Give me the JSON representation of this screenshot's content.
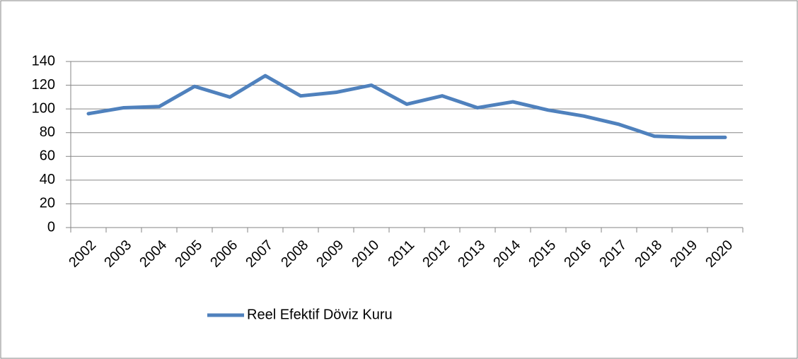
{
  "chart_data": {
    "type": "line",
    "categories": [
      "2002",
      "2003",
      "2004",
      "2005",
      "2006",
      "2007",
      "2008",
      "2009",
      "2010",
      "2011",
      "2012",
      "2013",
      "2014",
      "2015",
      "2016",
      "2017",
      "2018",
      "2019",
      "2020"
    ],
    "series": [
      {
        "name": "Reel Efektif Döviz Kuru",
        "color": "#4f81bd",
        "values": [
          96,
          101,
          102,
          119,
          110,
          128,
          111,
          114,
          120,
          104,
          111,
          101,
          106,
          99,
          94,
          87,
          77,
          76,
          76
        ]
      }
    ],
    "ylim": [
      0,
      140
    ],
    "yticks": [
      0,
      20,
      40,
      60,
      80,
      100,
      120,
      140
    ],
    "grid": true
  }
}
